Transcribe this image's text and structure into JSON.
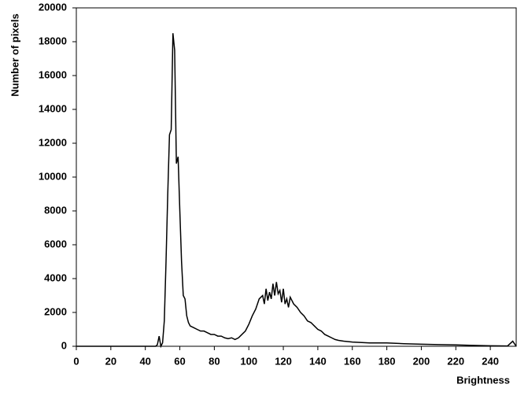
{
  "chart_data": {
    "type": "line",
    "x_label": "Brightness",
    "y_label": "Number of pixels",
    "x": [
      0,
      10,
      20,
      30,
      40,
      46,
      47,
      48,
      49,
      50,
      51,
      52,
      53,
      54,
      55,
      56,
      57,
      58,
      59,
      60,
      61,
      62,
      63,
      64,
      65,
      66,
      68,
      70,
      72,
      74,
      76,
      78,
      80,
      82,
      84,
      86,
      88,
      90,
      92,
      94,
      96,
      98,
      100,
      102,
      104,
      106,
      108,
      109,
      110,
      111,
      112,
      113,
      114,
      115,
      116,
      117,
      118,
      119,
      120,
      121,
      122,
      123,
      124,
      126,
      128,
      130,
      132,
      134,
      136,
      138,
      140,
      142,
      144,
      146,
      148,
      150,
      152,
      155,
      160,
      170,
      180,
      190,
      200,
      210,
      220,
      230,
      240,
      250,
      253,
      255
    ],
    "series": [
      {
        "name": "Number of pixels",
        "color": "#000000",
        "values": [
          0,
          0,
          0,
          0,
          0,
          0,
          100,
          600,
          0,
          200,
          1500,
          5000,
          9000,
          12500,
          12800,
          18500,
          17500,
          10800,
          11200,
          8000,
          5000,
          3000,
          2800,
          1800,
          1400,
          1200,
          1100,
          1000,
          900,
          900,
          800,
          700,
          700,
          600,
          600,
          500,
          450,
          500,
          400,
          500,
          700,
          900,
          1300,
          1800,
          2200,
          2800,
          3000,
          2500,
          3400,
          2700,
          3200,
          2800,
          3700,
          3000,
          3800,
          3100,
          3300,
          2600,
          3400,
          2500,
          2800,
          2300,
          2900,
          2500,
          2300,
          2000,
          1800,
          1500,
          1400,
          1200,
          1000,
          900,
          700,
          600,
          500,
          400,
          350,
          300,
          250,
          200,
          200,
          150,
          120,
          100,
          80,
          50,
          30,
          20,
          300,
          0
        ]
      }
    ],
    "xlim": [
      0,
      255
    ],
    "xticks": [
      0,
      20,
      40,
      60,
      80,
      100,
      120,
      140,
      160,
      180,
      200,
      220,
      240
    ],
    "ylim": [
      0,
      20000
    ],
    "yticks": [
      0,
      2000,
      4000,
      6000,
      8000,
      10000,
      12000,
      14000,
      16000,
      18000,
      20000
    ]
  }
}
